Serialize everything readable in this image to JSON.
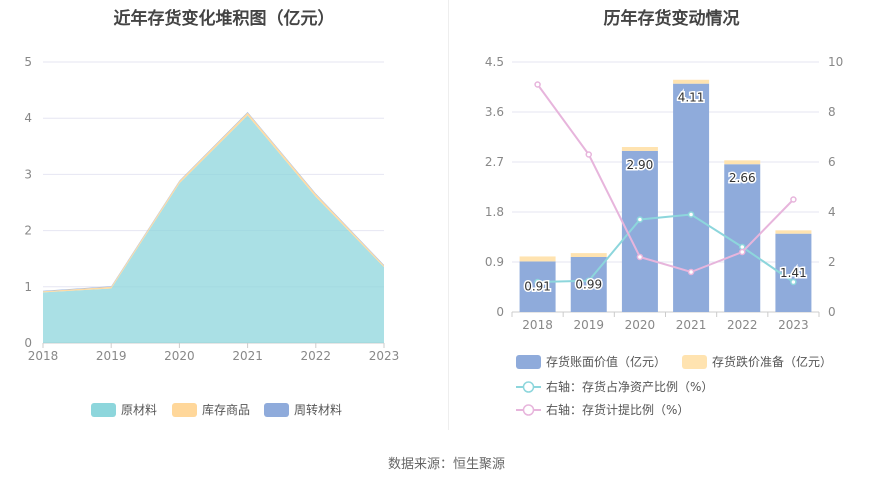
{
  "source": "数据来源：恒生聚源",
  "chart_data": [
    {
      "type": "area",
      "title": "近年存货变化堆积图（亿元）",
      "x": [
        "2018",
        "2019",
        "2020",
        "2021",
        "2022",
        "2023"
      ],
      "ylim": [
        0,
        5
      ],
      "yticks": [
        "0",
        "1",
        "2",
        "3",
        "4",
        "5"
      ],
      "stacked": true,
      "series": [
        {
          "name": "原材料",
          "color": "#8dd6dc",
          "values": [
            0.9,
            0.97,
            2.84,
            4.05,
            2.6,
            1.35
          ]
        },
        {
          "name": "库存商品",
          "color": "#ffd79a",
          "values": [
            0.02,
            0.03,
            0.04,
            0.05,
            0.05,
            0.03
          ]
        },
        {
          "name": "周转材料",
          "color": "#8fabdb",
          "values": [
            0.01,
            0.01,
            0.01,
            0.01,
            0.01,
            0.01
          ]
        }
      ],
      "legend": "bottom"
    },
    {
      "type": "bar",
      "title": "历年存货变动情况",
      "categories": [
        "2018",
        "2019",
        "2020",
        "2021",
        "2022",
        "2023"
      ],
      "ylim": [
        0,
        4.5
      ],
      "yticks": [
        "0",
        "0.9",
        "1.8",
        "2.7",
        "3.6",
        "4.5"
      ],
      "y2lim": [
        0,
        10
      ],
      "y2ticks": [
        "0",
        "2",
        "4",
        "6",
        "8",
        "10"
      ],
      "stacked_bars": [
        {
          "name": "存货账面价值（亿元）",
          "color": "#8fabdb",
          "values": [
            0.91,
            0.99,
            2.9,
            4.11,
            2.66,
            1.41
          ],
          "labels": [
            "0.91",
            "0.99",
            "2.90",
            "4.11",
            "2.66",
            "1.41"
          ]
        },
        {
          "name": "存货跌价准备（亿元）",
          "color": "#ffe3b0",
          "values": [
            0.09,
            0.07,
            0.07,
            0.07,
            0.07,
            0.06
          ]
        }
      ],
      "lines": [
        {
          "name": "右轴：存货占净资产比例（%）",
          "color": "#8dd6dc",
          "values": [
            1.2,
            1.25,
            3.7,
            3.9,
            2.6,
            1.2
          ]
        },
        {
          "name": "右轴：存货计提比例（%）",
          "color": "#e7b5dc",
          "values": [
            9.1,
            6.3,
            2.2,
            1.6,
            2.4,
            4.5
          ]
        }
      ],
      "legend": "bottom"
    }
  ]
}
